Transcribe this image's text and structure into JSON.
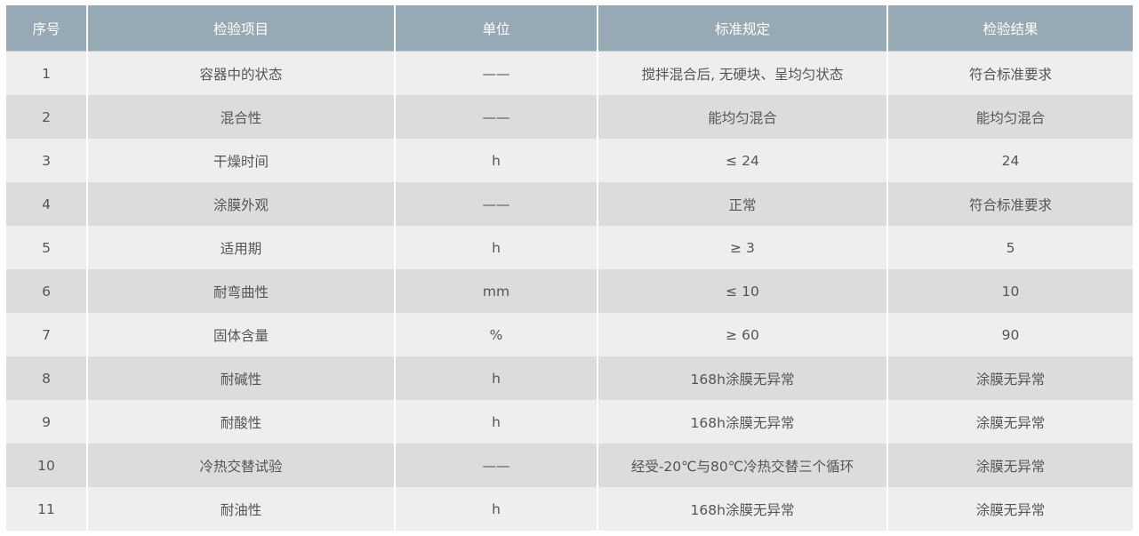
{
  "table": {
    "headers": [
      "序号",
      "检验项目",
      "单位",
      "标准规定",
      "检验结果"
    ],
    "rows": [
      [
        "1",
        "容器中的状态",
        "——",
        "搅拌混合后, 无硬块、呈均匀状态",
        "符合标准要求"
      ],
      [
        "2",
        "混合性",
        "——",
        "能均匀混合",
        "能均匀混合"
      ],
      [
        "3",
        "干燥时间",
        "h",
        "≤ 24",
        "24"
      ],
      [
        "4",
        "涂膜外观",
        "——",
        "正常",
        "符合标准要求"
      ],
      [
        "5",
        "适用期",
        "h",
        "≥ 3",
        "5"
      ],
      [
        "6",
        "耐弯曲性",
        "mm",
        "≤ 10",
        "10"
      ],
      [
        "7",
        "固体含量",
        "%",
        "≥ 60",
        "90"
      ],
      [
        "8",
        "耐碱性",
        "h",
        "168h涂膜无异常",
        "涂膜无异常"
      ],
      [
        "9",
        "耐酸性",
        "h",
        "168h涂膜无异常",
        "涂膜无异常"
      ],
      [
        "10",
        "冷热交替试验",
        "——",
        "经受-20℃与80℃冷热交替三个循环",
        "涂膜无异常"
      ],
      [
        "11",
        "耐油性",
        "h",
        "168h涂膜无异常",
        "涂膜无异常"
      ]
    ]
  },
  "colors": {
    "header_bg": "#97a9b4",
    "row_light": "#eeeeee",
    "row_dark": "#dcdcdc",
    "text": "#555555"
  }
}
